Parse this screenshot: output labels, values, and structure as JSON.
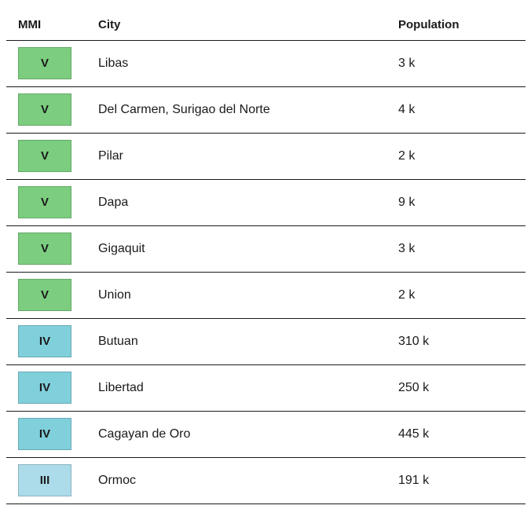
{
  "table": {
    "headers": {
      "mmi": "MMI",
      "city": "City",
      "population": "Population"
    },
    "rows": [
      {
        "mmi": "V",
        "city": "Libas",
        "population": "3 k",
        "color": "#7ccd7f"
      },
      {
        "mmi": "V",
        "city": "Del Carmen, Surigao del Norte",
        "population": "4 k",
        "color": "#7ccd7f"
      },
      {
        "mmi": "V",
        "city": "Pilar",
        "population": "2 k",
        "color": "#7ccd7f"
      },
      {
        "mmi": "V",
        "city": "Dapa",
        "population": "9 k",
        "color": "#7ccd7f"
      },
      {
        "mmi": "V",
        "city": "Gigaquit",
        "population": "3 k",
        "color": "#7ccd7f"
      },
      {
        "mmi": "V",
        "city": "Union",
        "population": "2 k",
        "color": "#7ccd7f"
      },
      {
        "mmi": "IV",
        "city": "Butuan",
        "population": "310 k",
        "color": "#80d0db"
      },
      {
        "mmi": "IV",
        "city": "Libertad",
        "population": "250 k",
        "color": "#80d0db"
      },
      {
        "mmi": "IV",
        "city": "Cagayan de Oro",
        "population": "445 k",
        "color": "#80d0db"
      },
      {
        "mmi": "III",
        "city": "Ormoc",
        "population": "191 k",
        "color": "#acdbea"
      }
    ]
  }
}
